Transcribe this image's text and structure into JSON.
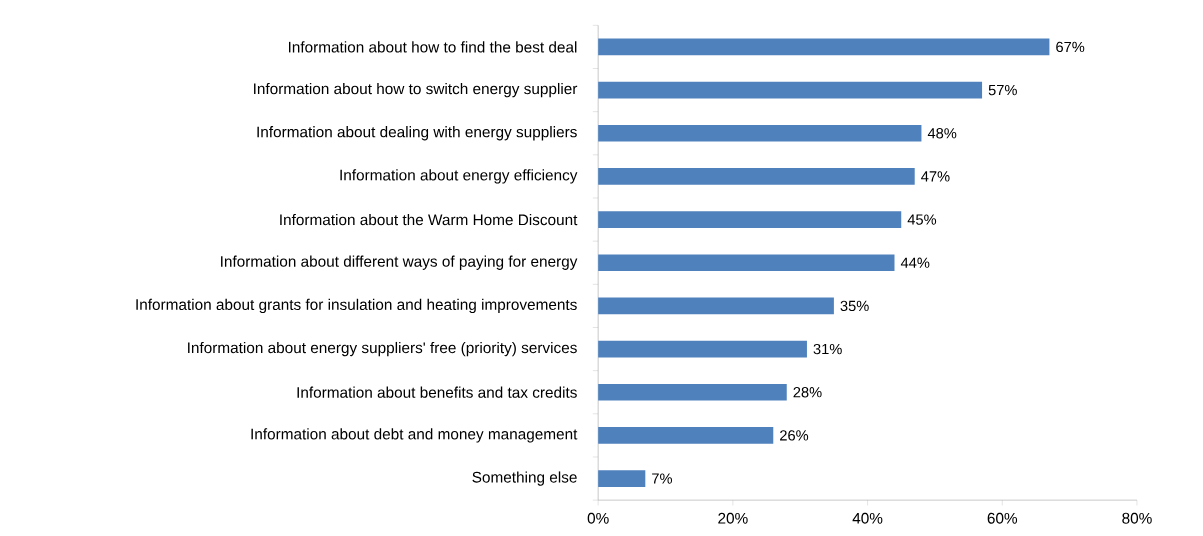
{
  "chart_data": {
    "type": "bar",
    "orientation": "horizontal",
    "categories": [
      "Information about how to find the best deal",
      "Information about how to switch energy supplier",
      "Information about dealing with energy suppliers",
      "Information about energy efficiency",
      "Information about the Warm Home Discount",
      "Information about different ways of paying for energy",
      "Information about grants for insulation and heating improvements",
      "Information about energy suppliers' free (priority) services",
      "Information about benefits and tax credits",
      "Information about debt and money management",
      "Something else"
    ],
    "values": [
      67,
      57,
      48,
      47,
      45,
      44,
      35,
      31,
      28,
      26,
      7
    ],
    "value_labels": [
      "67%",
      "57%",
      "48%",
      "47%",
      "45%",
      "44%",
      "35%",
      "31%",
      "28%",
      "26%",
      "7%"
    ],
    "color": "#4f81bd",
    "xlim": [
      0,
      80
    ],
    "xticks": [
      {
        "value": 0,
        "label": "0%"
      },
      {
        "value": 20,
        "label": "20%"
      },
      {
        "value": 40,
        "label": "40%"
      },
      {
        "value": 60,
        "label": "60%"
      },
      {
        "value": 80,
        "label": "80%"
      }
    ],
    "grid": false
  }
}
